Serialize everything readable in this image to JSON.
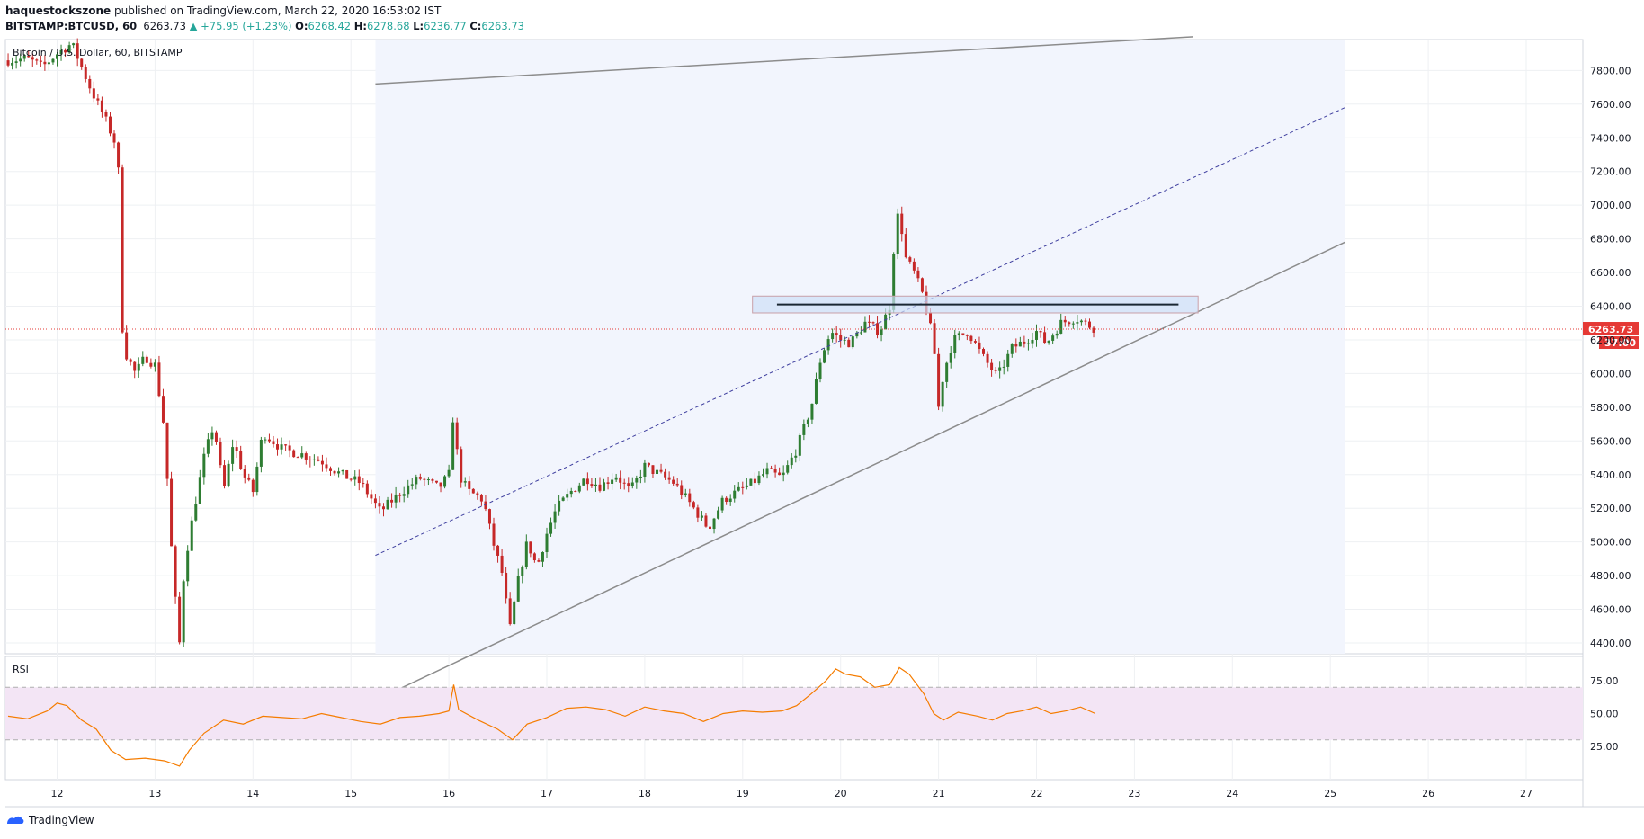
{
  "header": {
    "publisher": "haquestockszone",
    "published_text": "published on TradingView.com, March 22, 2020 16:53:02 IST",
    "symbol": "BITSTAMP:BTCUSD, 60",
    "last": "6263.73",
    "change": "+75.95 (+1.23%)",
    "o_label": "O:",
    "o_value": "6268.42",
    "h_label": "H:",
    "h_value": "6278.68",
    "l_label": "L:",
    "l_value": "6236.77",
    "c_label": "C:",
    "c_value": "6263.73"
  },
  "legend_title": "Bitcoin / U.S. Dollar, 60, BITSTAMP",
  "rsi_label": "RSI",
  "price_tag": "6263.73",
  "countdown_tag": "37:00",
  "footer_brand": "TradingView",
  "colors": {
    "up": "#26a69a",
    "down": "#ef5350",
    "up_candle": "#2e7d32",
    "down_candle": "#c62828",
    "channel": "#8c8c8c",
    "median": "#3f3f9f",
    "rsi_line": "#f57c00",
    "rsi_band": "#f3e5f5",
    "resistance_zone": "#cfe0f7",
    "current_price": "#e53935"
  },
  "chart_data": [
    {
      "type": "candlestick",
      "title": "Bitcoin / U.S. Dollar, 60, BITSTAMP",
      "x_ticks": [
        "12",
        "13",
        "14",
        "15",
        "16",
        "17",
        "18",
        "19",
        "20",
        "21",
        "22",
        "23",
        "24",
        "25",
        "26",
        "27"
      ],
      "y_ticks": [
        "4400.00",
        "4600.00",
        "4800.00",
        "5000.00",
        "5200.00",
        "5400.00",
        "5600.00",
        "5800.00",
        "6000.00",
        "6200.00",
        "6400.00",
        "6600.00",
        "6800.00",
        "7000.00",
        "7200.00",
        "7400.00",
        "7600.00",
        "7800.00"
      ],
      "ylim": [
        4300,
        7980
      ],
      "last_price": 6263.73,
      "price_path": [
        [
          11.5,
          7860
        ],
        [
          11.7,
          7870
        ],
        [
          11.85,
          7820
        ],
        [
          12.0,
          7900
        ],
        [
          12.15,
          7960
        ],
        [
          12.25,
          7820
        ],
        [
          12.35,
          7680
        ],
        [
          12.5,
          7500
        ],
        [
          12.62,
          7330
        ],
        [
          12.66,
          6300
        ],
        [
          12.7,
          6120
        ],
        [
          12.8,
          6000
        ],
        [
          12.9,
          6100
        ],
        [
          13.0,
          6050
        ],
        [
          13.1,
          5650
        ],
        [
          13.15,
          5100
        ],
        [
          13.2,
          4700
        ],
        [
          13.25,
          4400
        ],
        [
          13.3,
          4860
        ],
        [
          13.4,
          5200
        ],
        [
          13.5,
          5500
        ],
        [
          13.6,
          5700
        ],
        [
          13.7,
          5300
        ],
        [
          13.8,
          5600
        ],
        [
          13.9,
          5400
        ],
        [
          14.0,
          5300
        ],
        [
          14.1,
          5650
        ],
        [
          14.3,
          5550
        ],
        [
          14.5,
          5520
        ],
        [
          14.7,
          5480
        ],
        [
          14.9,
          5400
        ],
        [
          15.1,
          5350
        ],
        [
          15.3,
          5180
        ],
        [
          15.5,
          5290
        ],
        [
          15.7,
          5380
        ],
        [
          15.9,
          5320
        ],
        [
          16.0,
          5400
        ],
        [
          16.05,
          5800
        ],
        [
          16.1,
          5400
        ],
        [
          16.2,
          5300
        ],
        [
          16.35,
          5250
        ],
        [
          16.45,
          5000
        ],
        [
          16.55,
          4800
        ],
        [
          16.62,
          4470
        ],
        [
          16.7,
          4750
        ],
        [
          16.8,
          5000
        ],
        [
          16.9,
          4850
        ],
        [
          17.0,
          5050
        ],
        [
          17.1,
          5200
        ],
        [
          17.25,
          5300
        ],
        [
          17.4,
          5380
        ],
        [
          17.55,
          5330
        ],
        [
          17.7,
          5400
        ],
        [
          17.85,
          5300
        ],
        [
          18.0,
          5450
        ],
        [
          18.15,
          5400
        ],
        [
          18.3,
          5350
        ],
        [
          18.5,
          5200
        ],
        [
          18.65,
          5080
        ],
        [
          18.8,
          5250
        ],
        [
          18.95,
          5300
        ],
        [
          19.1,
          5350
        ],
        [
          19.25,
          5420
        ],
        [
          19.4,
          5380
        ],
        [
          19.55,
          5550
        ],
        [
          19.7,
          5800
        ],
        [
          19.8,
          6100
        ],
        [
          19.9,
          6250
        ],
        [
          20.0,
          6200
        ],
        [
          20.1,
          6180
        ],
        [
          20.25,
          6300
        ],
        [
          20.4,
          6250
        ],
        [
          20.5,
          6400
        ],
        [
          20.55,
          6800
        ],
        [
          20.6,
          7000
        ],
        [
          20.65,
          6700
        ],
        [
          20.75,
          6600
        ],
        [
          20.85,
          6450
        ],
        [
          20.95,
          6180
        ],
        [
          21.0,
          5800
        ],
        [
          21.05,
          6000
        ],
        [
          21.15,
          6200
        ],
        [
          21.3,
          6250
        ],
        [
          21.45,
          6100
        ],
        [
          21.6,
          5980
        ],
        [
          21.75,
          6150
        ],
        [
          21.9,
          6200
        ],
        [
          22.0,
          6250
        ],
        [
          22.1,
          6180
        ],
        [
          22.25,
          6300
        ],
        [
          22.4,
          6330
        ],
        [
          22.55,
          6280
        ],
        [
          22.62,
          6264
        ]
      ],
      "channel": {
        "upper": [
          [
            15.25,
            7720
          ],
          [
            23.6,
            8000
          ]
        ],
        "lower": [
          [
            15.25,
            4060
          ],
          [
            25.15,
            6780
          ]
        ],
        "median": [
          [
            15.25,
            4920
          ],
          [
            25.15,
            7580
          ]
        ]
      },
      "resistance_zone": {
        "x": [
          19.1,
          23.65
        ],
        "y": [
          6360,
          6460
        ],
        "line_y": 6410,
        "line_x": [
          19.35,
          23.45
        ]
      }
    },
    {
      "type": "line",
      "title": "RSI",
      "y_ticks": [
        "25.00",
        "50.00",
        "75.00"
      ],
      "ylim": [
        0,
        100
      ],
      "band": [
        30,
        70
      ],
      "values": [
        [
          11.5,
          48
        ],
        [
          11.7,
          46
        ],
        [
          11.9,
          52
        ],
        [
          12.0,
          58
        ],
        [
          12.1,
          56
        ],
        [
          12.25,
          45
        ],
        [
          12.4,
          38
        ],
        [
          12.55,
          22
        ],
        [
          12.7,
          15
        ],
        [
          12.9,
          16
        ],
        [
          13.1,
          14
        ],
        [
          13.25,
          10
        ],
        [
          13.35,
          22
        ],
        [
          13.5,
          35
        ],
        [
          13.7,
          45
        ],
        [
          13.9,
          42
        ],
        [
          14.1,
          48
        ],
        [
          14.3,
          47
        ],
        [
          14.5,
          46
        ],
        [
          14.7,
          50
        ],
        [
          14.9,
          47
        ],
        [
          15.1,
          44
        ],
        [
          15.3,
          42
        ],
        [
          15.5,
          47
        ],
        [
          15.7,
          48
        ],
        [
          15.9,
          50
        ],
        [
          16.0,
          52
        ],
        [
          16.05,
          72
        ],
        [
          16.1,
          53
        ],
        [
          16.3,
          45
        ],
        [
          16.5,
          38
        ],
        [
          16.65,
          30
        ],
        [
          16.8,
          42
        ],
        [
          17.0,
          47
        ],
        [
          17.2,
          54
        ],
        [
          17.4,
          55
        ],
        [
          17.6,
          53
        ],
        [
          17.8,
          48
        ],
        [
          18.0,
          55
        ],
        [
          18.2,
          52
        ],
        [
          18.4,
          50
        ],
        [
          18.6,
          44
        ],
        [
          18.8,
          50
        ],
        [
          19.0,
          52
        ],
        [
          19.2,
          51
        ],
        [
          19.4,
          52
        ],
        [
          19.55,
          56
        ],
        [
          19.7,
          65
        ],
        [
          19.85,
          75
        ],
        [
          19.95,
          84
        ],
        [
          20.05,
          80
        ],
        [
          20.2,
          78
        ],
        [
          20.35,
          70
        ],
        [
          20.5,
          72
        ],
        [
          20.6,
          85
        ],
        [
          20.7,
          80
        ],
        [
          20.85,
          65
        ],
        [
          20.95,
          50
        ],
        [
          21.05,
          45
        ],
        [
          21.2,
          51
        ],
        [
          21.4,
          48
        ],
        [
          21.55,
          45
        ],
        [
          21.7,
          50
        ],
        [
          21.85,
          52
        ],
        [
          22.0,
          55
        ],
        [
          22.15,
          50
        ],
        [
          22.3,
          52
        ],
        [
          22.45,
          55
        ],
        [
          22.6,
          50
        ]
      ]
    }
  ]
}
